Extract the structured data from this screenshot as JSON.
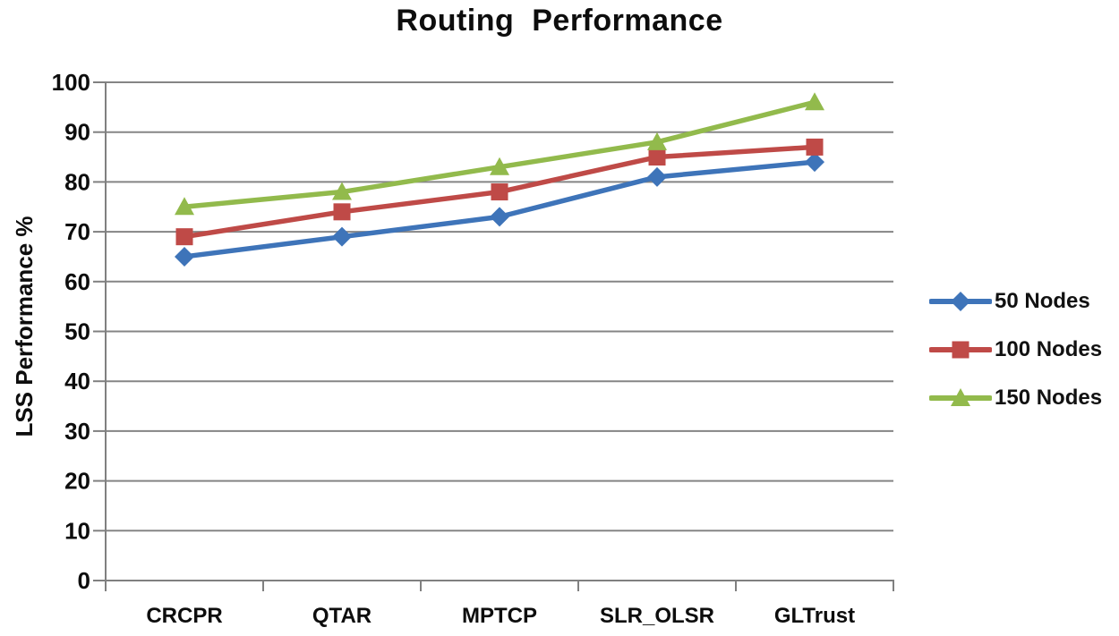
{
  "chart_data": {
    "type": "line",
    "title": "Routing Performance",
    "ylabel": "LSS Performance %",
    "xlabel": "",
    "categories": [
      "CRCPR",
      "QTAR",
      "MPTCP",
      "SLR_OLSR",
      "GLTrust"
    ],
    "series": [
      {
        "name": "50 Nodes",
        "marker": "diamond",
        "color": "#3E74B9",
        "values": [
          65,
          69,
          73,
          81,
          84
        ]
      },
      {
        "name": "100 Nodes",
        "marker": "square",
        "color": "#BF4A47",
        "values": [
          69,
          74,
          78,
          85,
          87
        ]
      },
      {
        "name": "150 Nodes",
        "marker": "triangle",
        "color": "#92BA4C",
        "values": [
          75,
          78,
          83,
          88,
          96
        ]
      }
    ],
    "ylim": [
      0,
      100
    ],
    "ytick_step": 10,
    "grid": "horizontal",
    "legend_position": "right",
    "axis_color": "#808080",
    "gridline_color": "#858585",
    "text_color": "#0d0d0d"
  }
}
